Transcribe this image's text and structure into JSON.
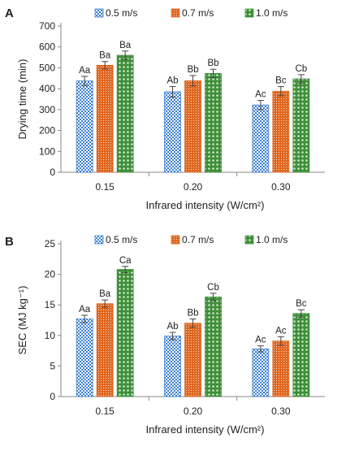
{
  "colors": {
    "series_0": "#3b7fd4",
    "series_1": "#e0661f",
    "series_2": "#3f8f3a",
    "axis": "#888888",
    "text": "#222222"
  },
  "chart_data": [
    {
      "type": "bar",
      "panel": "A",
      "title": "",
      "xlabel": "Infrared intensity (W/cm²)",
      "ylabel": "Drying time (min)",
      "ylim": [
        0,
        700
      ],
      "yticks": [
        0,
        100,
        200,
        300,
        400,
        500,
        600,
        700
      ],
      "ytick_labels": [
        "0",
        "100",
        "200",
        "300",
        "400",
        "500",
        "600",
        "700"
      ],
      "grid": false,
      "legend_position": "top",
      "categories": [
        "0.15",
        "0.20",
        "0.30"
      ],
      "series": [
        {
          "name": "0.5 m/s",
          "values": [
            437,
            385,
            322
          ],
          "errors": [
            22,
            25,
            22
          ],
          "labels": [
            "Aa",
            "Ab",
            "Ac"
          ],
          "pattern": "checker"
        },
        {
          "name": "0.7 m/s",
          "values": [
            512,
            438,
            388
          ],
          "errors": [
            18,
            25,
            22
          ],
          "labels": [
            "Ba",
            "Bb",
            "Bc"
          ],
          "pattern": "dots"
        },
        {
          "name": "1.0 m/s",
          "values": [
            560,
            473,
            447
          ],
          "errors": [
            20,
            20,
            20
          ],
          "labels": [
            "Ba",
            "Bb",
            "Cb"
          ],
          "pattern": "circles"
        }
      ]
    },
    {
      "type": "bar",
      "panel": "B",
      "title": "",
      "xlabel": "Infrared intensity (W/cm²)",
      "ylabel": "SEC (MJ kg⁻¹)",
      "ylim": [
        0,
        25
      ],
      "yticks": [
        0,
        5,
        10,
        15,
        20,
        25
      ],
      "ytick_labels": [
        "0",
        "5",
        "10",
        "15",
        "20",
        "25"
      ],
      "grid": false,
      "legend_position": "top",
      "categories": [
        "0.15",
        "0.20",
        "0.30"
      ],
      "series": [
        {
          "name": "0.5 m/s",
          "values": [
            12.7,
            9.9,
            7.8
          ],
          "errors": [
            0.6,
            0.6,
            0.5
          ],
          "labels": [
            "Aa",
            "Ab",
            "Ac"
          ],
          "pattern": "checker"
        },
        {
          "name": "0.7 m/s",
          "values": [
            15.2,
            12.0,
            9.1
          ],
          "errors": [
            0.6,
            0.7,
            0.7
          ],
          "labels": [
            "Ba",
            "Bb",
            "Ac"
          ],
          "pattern": "dots"
        },
        {
          "name": "1.0 m/s",
          "values": [
            20.8,
            16.3,
            13.6
          ],
          "errors": [
            0.5,
            0.6,
            0.6
          ],
          "labels": [
            "Ca",
            "Cb",
            "Bc"
          ],
          "pattern": "circles"
        }
      ]
    }
  ]
}
